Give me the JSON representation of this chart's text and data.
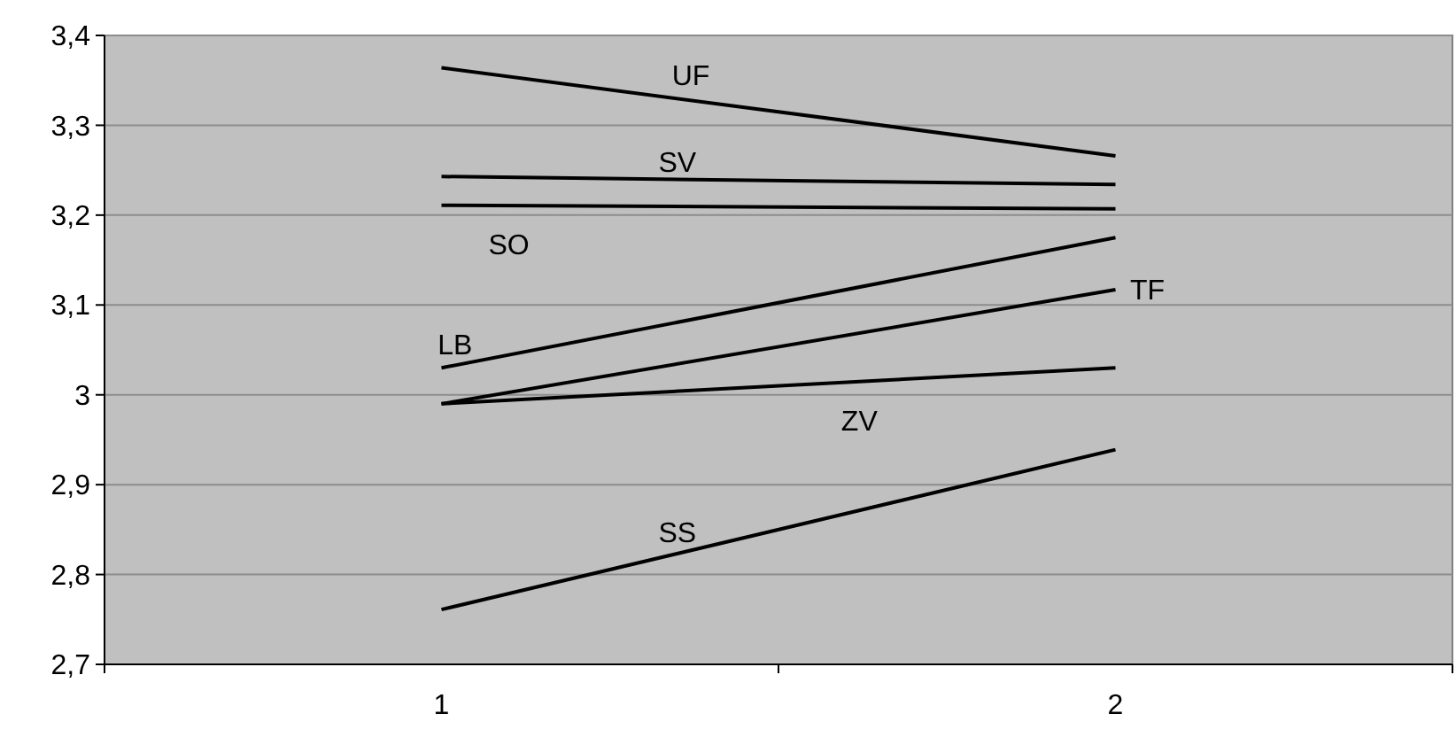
{
  "chart_data": {
    "type": "line",
    "categories": [
      "1",
      "2"
    ],
    "ylim": [
      2.7,
      3.4
    ],
    "yticks": [
      {
        "value": 2.7,
        "label": "2,7"
      },
      {
        "value": 2.8,
        "label": "2,8"
      },
      {
        "value": 2.9,
        "label": "2,9"
      },
      {
        "value": 3,
        "label": "3"
      },
      {
        "value": 3.1,
        "label": "3,1"
      },
      {
        "value": 3.2,
        "label": "3,2"
      },
      {
        "value": 3.3,
        "label": "3,3"
      },
      {
        "value": 3.4,
        "label": "3,4"
      }
    ],
    "grid": "y",
    "legend": false,
    "marker": "none",
    "line_style": "solid",
    "series": [
      {
        "name": "UF",
        "color": "#000000",
        "values": [
          3.364,
          3.266
        ]
      },
      {
        "name": "SV",
        "color": "#000000",
        "values": [
          3.243,
          3.234
        ]
      },
      {
        "name": "SO",
        "color": "#000000",
        "values": [
          3.211,
          3.207
        ]
      },
      {
        "name": "LB",
        "color": "#000000",
        "values": [
          3.03,
          3.175
        ]
      },
      {
        "name": "TF",
        "color": "#000000",
        "values": [
          2.99,
          3.117
        ]
      },
      {
        "name": "ZV",
        "color": "#000000",
        "values": [
          2.99,
          3.03
        ]
      },
      {
        "name": "SS",
        "color": "#000000",
        "values": [
          2.761,
          2.939
        ]
      }
    ]
  }
}
